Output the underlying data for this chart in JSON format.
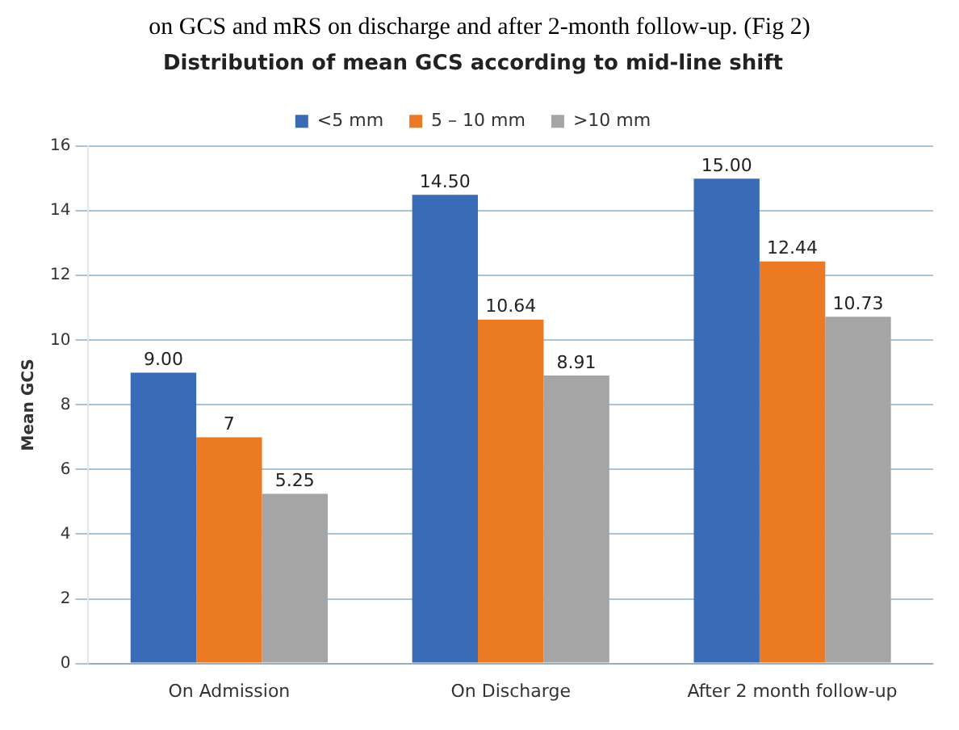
{
  "chart_data": {
    "type": "bar",
    "title": "Distribution of mean GCS according to mid-line shift",
    "ylabel": "Mean GCS",
    "annotations": [
      "on GCS and mRS on discharge and after 2-month follow-up. (Fig 2)"
    ],
    "categories": [
      "On Admission",
      "On Discharge",
      "After 2 month follow-up"
    ],
    "series": [
      {
        "name": "<5 mm",
        "color": "#3a6bb7",
        "values": [
          9,
          14.5,
          15
        ],
        "value_labels": [
          "9.00",
          "14.50",
          "15.00"
        ]
      },
      {
        "name": "5 – 10 mm",
        "color": "#ec7a22",
        "values": [
          7,
          10.64,
          12.44
        ],
        "value_labels": [
          "7",
          "10.64",
          "12.44"
        ]
      },
      {
        "name": ">10 mm",
        "color": "#a5a5a5",
        "values": [
          5.25,
          8.91,
          10.73
        ],
        "value_labels": [
          "5.25",
          "8.91",
          "10.73"
        ]
      }
    ],
    "ylim": [
      0,
      16
    ],
    "yticks": [
      0,
      2,
      4,
      6,
      8,
      10,
      12,
      14,
      16
    ],
    "grid": "y",
    "legend": "top"
  }
}
